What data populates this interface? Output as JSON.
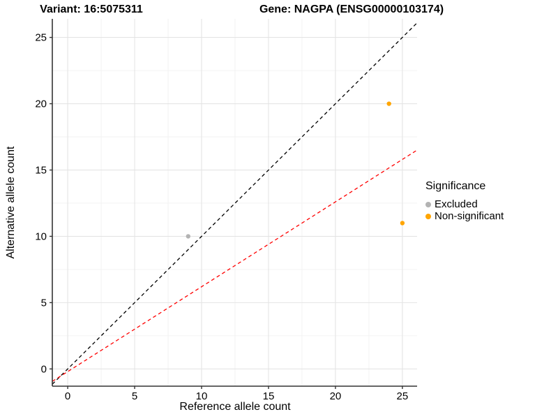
{
  "titles": {
    "variant": "Variant: 16:5075311",
    "gene": "Gene: NAGPA (ENSG00000103174)"
  },
  "chart_data": {
    "type": "scatter",
    "xlabel": "Reference allele count",
    "ylabel": "Alternative allele count",
    "xlim": [
      -1.15,
      26.1
    ],
    "ylim": [
      -1.3,
      26.4
    ],
    "xticks": [
      0,
      5,
      10,
      15,
      20,
      25
    ],
    "yticks": [
      0,
      5,
      10,
      15,
      20,
      25
    ],
    "grid": {
      "major_step": 5,
      "minor_step": 2.5,
      "show": true
    },
    "points": [
      {
        "x": 9,
        "y": 10,
        "group": "Excluded"
      },
      {
        "x": 24,
        "y": 20,
        "group": "Non-significant"
      },
      {
        "x": 25,
        "y": 11,
        "group": "Non-significant"
      }
    ],
    "lines": [
      {
        "name": "identity-line",
        "slope": 1,
        "intercept": 0,
        "color": "#000000",
        "style": "dashed"
      },
      {
        "name": "red-dashed-line",
        "slope": 0.64,
        "intercept": -0.2,
        "color": "#FF0000",
        "style": "dashed"
      }
    ],
    "legend": {
      "title": "Significance",
      "position": "right",
      "entries": [
        {
          "label": "Excluded",
          "color": "#B3B3B3"
        },
        {
          "label": "Non-significant",
          "color": "#FFA500"
        }
      ]
    },
    "colors": {
      "Excluded": "#B3B3B3",
      "Non-significant": "#FFA500",
      "grid_major": "#E4E4E4",
      "grid_minor": "#F2F2F2",
      "axis": "#333333",
      "tick_label": "#000000"
    }
  }
}
